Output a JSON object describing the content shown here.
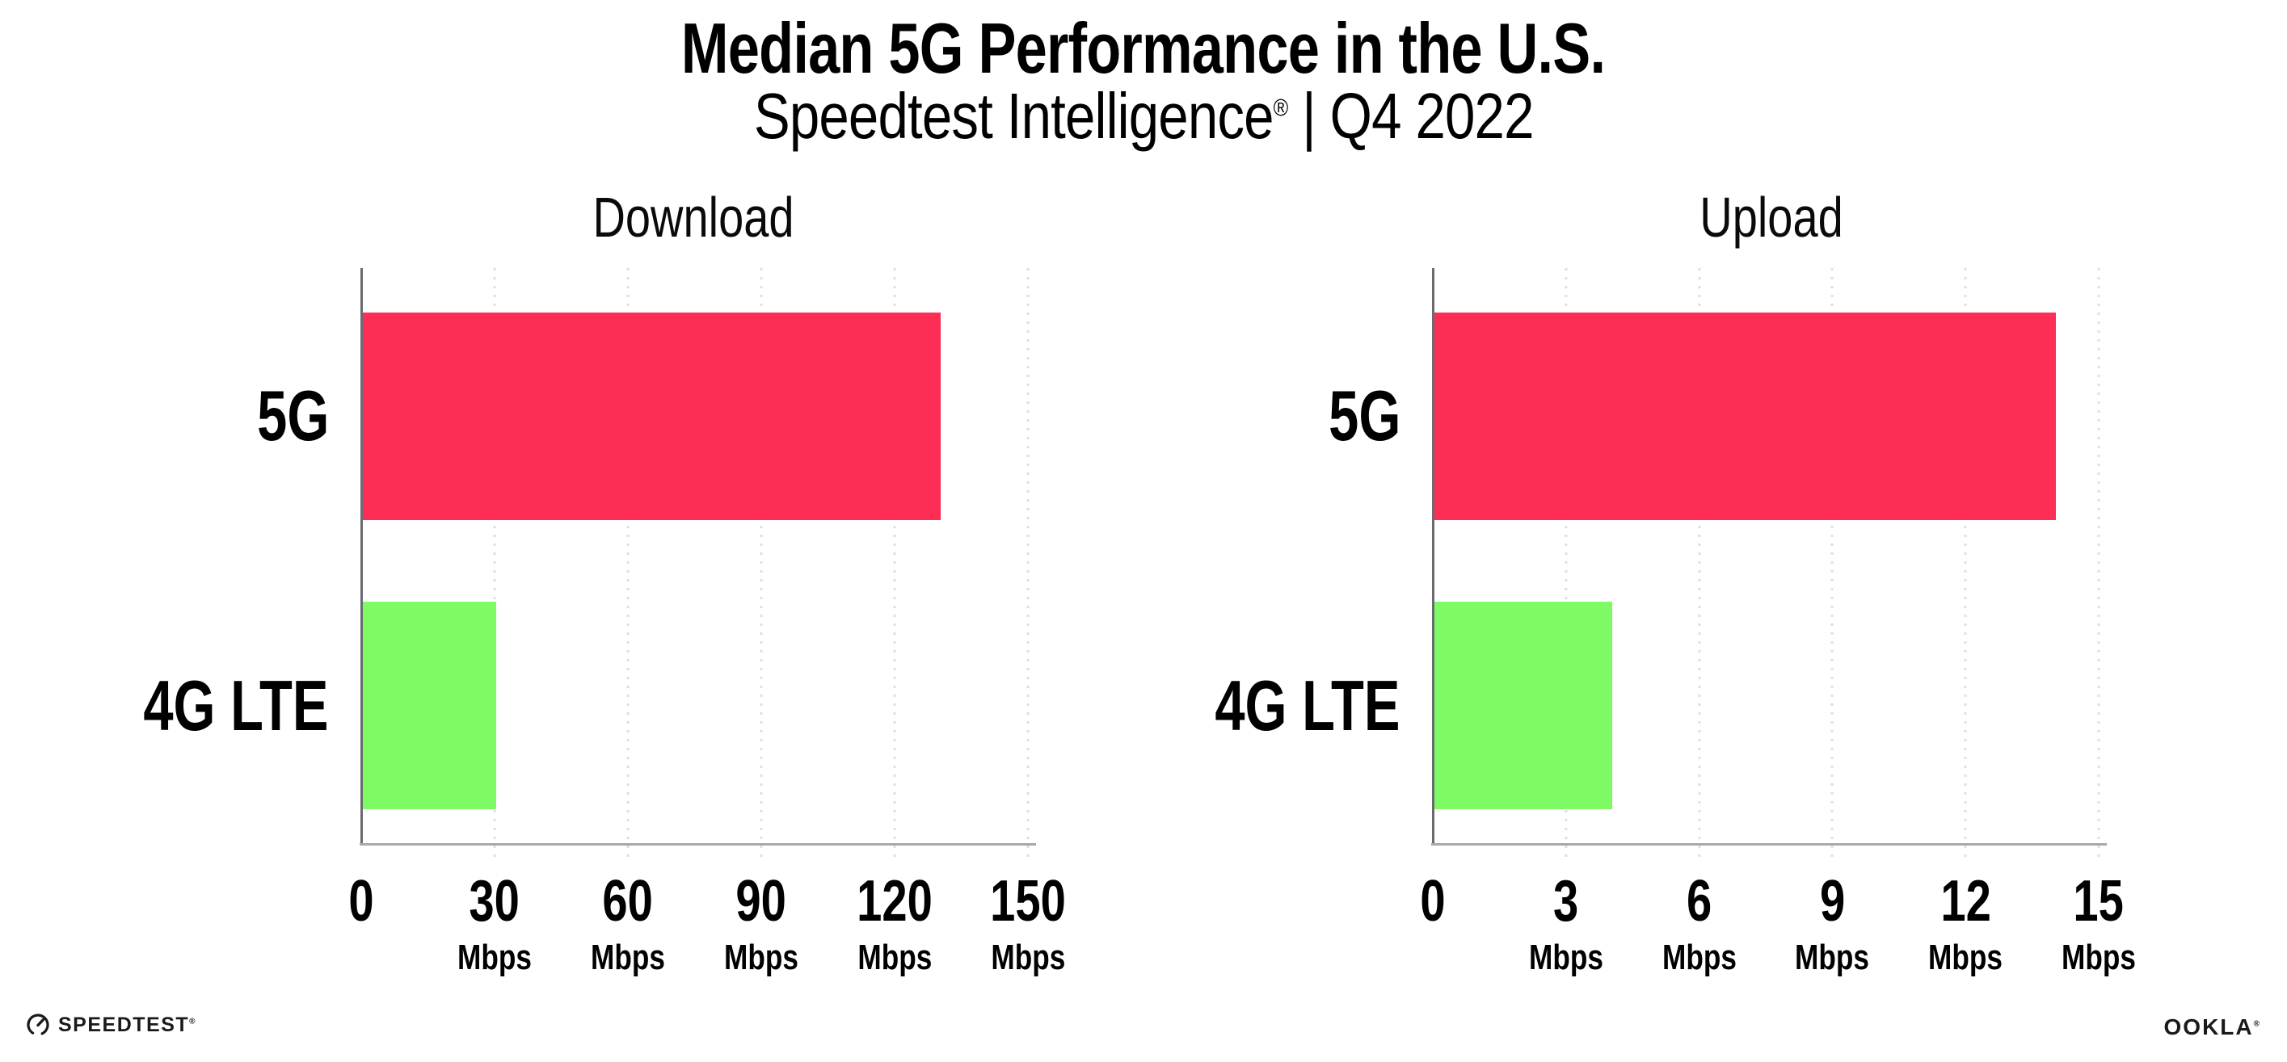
{
  "header": {
    "title": "Median 5G Performance in the U.S.",
    "subtitle_brand": "Speedtest Intelligence",
    "subtitle_reg": "®",
    "subtitle_rest": " | Q4 2022"
  },
  "chart_data": [
    {
      "type": "bar",
      "orientation": "horizontal",
      "title": "Download",
      "categories": [
        "5G",
        "4G LTE"
      ],
      "values": [
        130,
        30
      ],
      "unit": "Mbps",
      "xlim": [
        0,
        150
      ],
      "xticks": [
        0,
        30,
        60,
        90,
        120,
        150
      ],
      "bar_colors": [
        "#FE2D55",
        "#7EFB64"
      ],
      "grid": "dotted-vertical",
      "legend": "none"
    },
    {
      "type": "bar",
      "orientation": "horizontal",
      "title": "Upload",
      "categories": [
        "5G",
        "4G LTE"
      ],
      "values": [
        14,
        4
      ],
      "unit": "Mbps",
      "xlim": [
        0,
        15
      ],
      "xticks": [
        0,
        3,
        6,
        9,
        12,
        15
      ],
      "bar_colors": [
        "#FE2D55",
        "#7EFB64"
      ],
      "grid": "dotted-vertical",
      "legend": "none"
    }
  ],
  "footer": {
    "speedtest_label": "SPEEDTEST",
    "speedtest_reg": "®",
    "ookla_label": "OOKLA",
    "ookla_reg": "®"
  },
  "colors": {
    "bar_5g": "#FE2D55",
    "bar_4g_lte": "#7EFB64",
    "grid_dot": "#DEDEE9",
    "x_axis_line": "#A8A8AD",
    "y_axis_line": "#6A6A70",
    "text": "#000000"
  }
}
